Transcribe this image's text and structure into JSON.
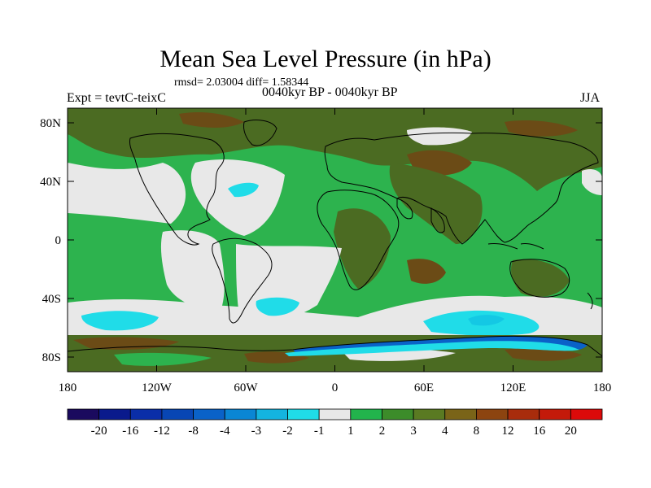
{
  "title": "Mean Sea Level Pressure (in hPa)",
  "stats": "rmsd= 2.03004  diff= 1.58344",
  "experiment": "Expt = tevtC-teixC",
  "period": "0040kyr BP - 0040kyr BP",
  "season": "JJA",
  "latitude_ticks": [
    "80N",
    "40N",
    "0",
    "40S",
    "80S"
  ],
  "longitude_ticks": [
    "180",
    "120W",
    "60W",
    "0",
    "60E",
    "120E",
    "180"
  ],
  "colorbar": {
    "labels": [
      "-20",
      "-16",
      "-12",
      "-8",
      "-4",
      "-3",
      "-2",
      "-1",
      "1",
      "2",
      "3",
      "4",
      "8",
      "12",
      "16",
      "20"
    ],
    "colors": [
      "#1a0a5e",
      "#0a1a8c",
      "#0a2ea8",
      "#0846b4",
      "#0a62c8",
      "#0a86d4",
      "#14b4e0",
      "#20dce8",
      "#e8e8e8",
      "#22b44c",
      "#3c8c2a",
      "#5a7a22",
      "#7a6418",
      "#8c4410",
      "#a82c0c",
      "#c41a0a",
      "#dc0a0a"
    ]
  },
  "field_colors": {
    "neutral": "#e8e8e8",
    "green": "#2db34e",
    "olive": "#4b6b22",
    "brown": "#6b4b16",
    "cyan": "#20dce8",
    "cyan_light": "#14c8e4",
    "blue": "#0a62c8",
    "coast": "#000000"
  }
}
